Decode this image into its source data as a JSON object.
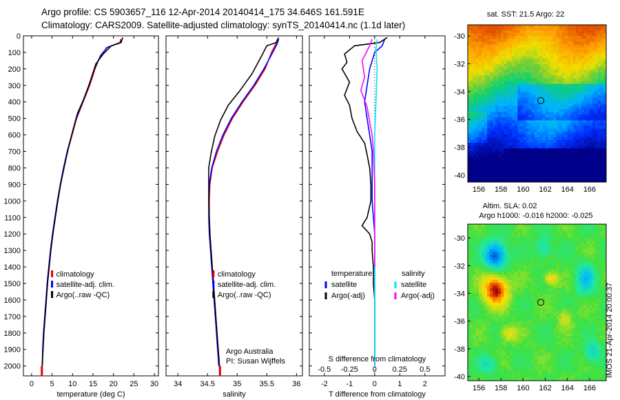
{
  "header": {
    "line1": "Argo profile: CS 5903657_116 12-Apr-2014 20140414_175 34.646S 161.591E",
    "line2": "Climatology: CARS2009. Satellite-adjusted climatology: synTS_20140414.nc (1.1d later)"
  },
  "side_label": "IMOS 21-Apr-2014 20:00:37",
  "colors": {
    "climatology": "#e00000",
    "satellite": "#0000ff",
    "argo": "#000000",
    "sat_s": "#00e5ff",
    "argo_s": "#ff00ff"
  },
  "chart_data": [
    {
      "id": "temperature",
      "type": "line",
      "xlabel": "temperature (deg C)",
      "xlim": [
        -2,
        31
      ],
      "xticks": [
        0,
        5,
        10,
        15,
        20,
        25,
        30
      ],
      "ylim": [
        2060,
        0
      ],
      "yticks": [
        0,
        100,
        200,
        300,
        400,
        500,
        600,
        700,
        800,
        900,
        1000,
        1100,
        1200,
        1300,
        1400,
        1500,
        1600,
        1700,
        1800,
        1900,
        2000
      ],
      "legend": [
        "climatology",
        "satellite-adj. clim.",
        "Argo(..raw -QC)"
      ],
      "series": [
        {
          "name": "climatology",
          "color": "#e00000",
          "points": [
            [
              21.8,
              20
            ],
            [
              21.6,
              40
            ],
            [
              18.5,
              70
            ],
            [
              16.8,
              120
            ],
            [
              15.5,
              200
            ],
            [
              14.2,
              300
            ],
            [
              12.6,
              400
            ],
            [
              11.0,
              500
            ],
            [
              9.9,
              600
            ],
            [
              8.8,
              700
            ],
            [
              7.9,
              800
            ],
            [
              7.1,
              900
            ],
            [
              6.4,
              1000
            ],
            [
              5.8,
              1100
            ],
            [
              5.2,
              1200
            ],
            [
              4.7,
              1300
            ],
            [
              4.3,
              1400
            ],
            [
              3.9,
              1500
            ],
            [
              3.6,
              1600
            ],
            [
              3.3,
              1700
            ],
            [
              3.0,
              1800
            ],
            [
              2.8,
              1900
            ],
            [
              2.6,
              2000
            ],
            [
              2.5,
              2050
            ]
          ]
        },
        {
          "name": "satellite-adj. clim.",
          "color": "#0000ff",
          "points": [
            [
              22.0,
              20
            ],
            [
              21.9,
              40
            ],
            [
              18.4,
              70
            ],
            [
              16.9,
              120
            ],
            [
              15.3,
              200
            ],
            [
              14.0,
              300
            ],
            [
              12.5,
              400
            ],
            [
              10.9,
              500
            ],
            [
              9.8,
              600
            ],
            [
              8.7,
              700
            ],
            [
              7.8,
              800
            ],
            [
              7.0,
              900
            ],
            [
              6.3,
              1000
            ],
            [
              5.7,
              1100
            ],
            [
              5.1,
              1200
            ],
            [
              4.6,
              1300
            ],
            [
              4.2,
              1400
            ],
            [
              3.8,
              1500
            ],
            [
              3.5,
              1600
            ],
            [
              3.2,
              1700
            ],
            [
              2.9,
              1800
            ],
            [
              2.7,
              1900
            ],
            [
              2.6,
              2000
            ]
          ]
        },
        {
          "name": "Argo(..raw -QC)",
          "color": "#000000",
          "points": [
            [
              22.3,
              10
            ],
            [
              21.8,
              40
            ],
            [
              19.5,
              60
            ],
            [
              17.5,
              110
            ],
            [
              15.7,
              170
            ],
            [
              14.3,
              280
            ],
            [
              12.8,
              380
            ],
            [
              11.2,
              470
            ],
            [
              10.0,
              580
            ],
            [
              8.9,
              690
            ],
            [
              8.0,
              790
            ],
            [
              7.1,
              900
            ],
            [
              6.4,
              1000
            ],
            [
              5.8,
              1100
            ],
            [
              5.2,
              1200
            ],
            [
              4.7,
              1300
            ],
            [
              4.3,
              1400
            ],
            [
              3.9,
              1500
            ],
            [
              3.6,
              1600
            ],
            [
              3.3,
              1700
            ],
            [
              3.0,
              1800
            ],
            [
              2.8,
              1900
            ],
            [
              2.6,
              2000
            ]
          ]
        }
      ]
    },
    {
      "id": "salinity",
      "type": "line",
      "xlabel": "salinity",
      "xlim": [
        33.8,
        36.1
      ],
      "xticks": [
        34,
        34.5,
        35,
        35.5,
        36
      ],
      "ylim": [
        2060,
        0
      ],
      "legend": [
        "climatology",
        "satellite-adj. clim.",
        "Argo(..raw -QC)"
      ],
      "note": [
        "Argo Australia",
        "PI: Susan Wijffels"
      ],
      "series": [
        {
          "name": "climatology",
          "color": "#e00000",
          "points": [
            [
              35.68,
              20
            ],
            [
              35.65,
              50
            ],
            [
              35.58,
              100
            ],
            [
              35.47,
              200
            ],
            [
              35.3,
              300
            ],
            [
              35.1,
              400
            ],
            [
              34.92,
              500
            ],
            [
              34.78,
              600
            ],
            [
              34.67,
              700
            ],
            [
              34.58,
              800
            ],
            [
              34.54,
              900
            ],
            [
              34.53,
              1000
            ],
            [
              34.53,
              1100
            ],
            [
              34.54,
              1200
            ],
            [
              34.56,
              1300
            ],
            [
              34.58,
              1400
            ],
            [
              34.6,
              1500
            ],
            [
              34.62,
              1600
            ],
            [
              34.64,
              1700
            ],
            [
              34.66,
              1800
            ],
            [
              34.68,
              1900
            ],
            [
              34.7,
              2000
            ],
            [
              34.71,
              2050
            ]
          ]
        },
        {
          "name": "satellite-adj. clim.",
          "color": "#0000ff",
          "points": [
            [
              35.7,
              20
            ],
            [
              35.67,
              50
            ],
            [
              35.6,
              100
            ],
            [
              35.45,
              200
            ],
            [
              35.28,
              300
            ],
            [
              35.08,
              400
            ],
            [
              34.9,
              500
            ],
            [
              34.76,
              600
            ],
            [
              34.65,
              700
            ],
            [
              34.57,
              800
            ],
            [
              34.53,
              900
            ],
            [
              34.52,
              1000
            ],
            [
              34.52,
              1100
            ],
            [
              34.53,
              1200
            ],
            [
              34.55,
              1300
            ],
            [
              34.57,
              1400
            ],
            [
              34.59,
              1500
            ],
            [
              34.61,
              1600
            ],
            [
              34.63,
              1700
            ],
            [
              34.65,
              1800
            ],
            [
              34.67,
              1900
            ],
            [
              34.69,
              2000
            ]
          ]
        },
        {
          "name": "Argo(..raw -QC)",
          "color": "#000000",
          "points": [
            [
              35.7,
              10
            ],
            [
              35.66,
              40
            ],
            [
              35.5,
              60
            ],
            [
              35.4,
              130
            ],
            [
              35.25,
              230
            ],
            [
              35.05,
              330
            ],
            [
              34.85,
              420
            ],
            [
              34.72,
              510
            ],
            [
              34.62,
              610
            ],
            [
              34.56,
              710
            ],
            [
              34.52,
              800
            ],
            [
              34.52,
              900
            ],
            [
              34.52,
              1000
            ],
            [
              34.53,
              1100
            ],
            [
              34.54,
              1200
            ],
            [
              34.56,
              1300
            ],
            [
              34.58,
              1400
            ],
            [
              34.6,
              1500
            ],
            [
              34.62,
              1600
            ],
            [
              34.64,
              1700
            ],
            [
              34.66,
              1800
            ],
            [
              34.68,
              1900
            ],
            [
              34.7,
              2000
            ]
          ]
        }
      ]
    },
    {
      "id": "difference",
      "type": "line",
      "xlabel": "T difference from climatology",
      "xlabel_top": "S difference from climatology",
      "xlim": [
        -2.6,
        2.8
      ],
      "xticks": [
        -2,
        -1,
        0,
        1,
        2
      ],
      "xticks_s": [
        {
          "v": -2,
          "label": "-0.5"
        },
        {
          "v": -1,
          "label": "-0.25"
        },
        {
          "v": 0,
          "label": "0"
        },
        {
          "v": 1,
          "label": "0.25"
        },
        {
          "v": 2,
          "label": "0.5"
        }
      ],
      "ylim": [
        2060,
        0
      ],
      "legend_t_title": "temperature",
      "legend_s_title": "salinity",
      "legend_t": [
        "satellite",
        "Argo(-adj)"
      ],
      "legend_s": [
        "satellite",
        "Argo(-adj)"
      ],
      "series": [
        {
          "name": "T satellite",
          "color": "#0000ff",
          "points": [
            [
              0.4,
              20
            ],
            [
              0.3,
              60
            ],
            [
              0.0,
              100
            ],
            [
              -0.2,
              200
            ],
            [
              -0.3,
              300
            ],
            [
              -0.4,
              400
            ],
            [
              -0.3,
              500
            ],
            [
              -0.2,
              600
            ],
            [
              -0.1,
              700
            ],
            [
              -0.1,
              800
            ],
            [
              -0.1,
              900
            ],
            [
              -0.1,
              1000
            ],
            [
              -0.05,
              1100
            ],
            [
              0.0,
              1200
            ],
            [
              0.0,
              1300
            ],
            [
              0.0,
              1500
            ],
            [
              0.0,
              1700
            ],
            [
              0.0,
              1900
            ],
            [
              0.0,
              2000
            ]
          ]
        },
        {
          "name": "T Argo(-adj)",
          "color": "#000000",
          "points": [
            [
              0.5,
              10
            ],
            [
              0.2,
              40
            ],
            [
              -0.8,
              60
            ],
            [
              -1.2,
              110
            ],
            [
              -1.1,
              160
            ],
            [
              -1.3,
              200
            ],
            [
              -1.0,
              280
            ],
            [
              -1.2,
              360
            ],
            [
              -1.0,
              420
            ],
            [
              -0.9,
              500
            ],
            [
              -0.7,
              580
            ],
            [
              -0.4,
              650
            ],
            [
              -0.3,
              720
            ],
            [
              -0.2,
              800
            ],
            [
              -0.15,
              900
            ],
            [
              -0.15,
              1000
            ],
            [
              -0.3,
              1100
            ],
            [
              -0.5,
              1150
            ],
            [
              -0.2,
              1200
            ],
            [
              -0.1,
              1250
            ],
            [
              -0.1,
              1300
            ],
            [
              -0.05,
              1400
            ],
            [
              -0.05,
              1500
            ],
            [
              0.0,
              1600
            ],
            [
              0.0,
              1800
            ],
            [
              0.0,
              2000
            ]
          ]
        },
        {
          "name": "S satellite",
          "color": "#00e5ff",
          "points": [
            [
              0.1,
              20
            ],
            [
              0.05,
              80
            ],
            [
              0.1,
              200
            ],
            [
              0.05,
              400
            ],
            [
              0.0,
              600
            ],
            [
              0.0,
              800
            ],
            [
              0.0,
              1000
            ],
            [
              0.0,
              1300
            ],
            [
              0.0,
              1600
            ],
            [
              0.0,
              2000
            ]
          ]
        },
        {
          "name": "S Argo(-adj)",
          "color": "#ff00ff",
          "points": [
            [
              -0.1,
              20
            ],
            [
              -0.2,
              60
            ],
            [
              -0.5,
              150
            ],
            [
              -0.4,
              250
            ],
            [
              -0.55,
              330
            ],
            [
              -0.3,
              430
            ],
            [
              -0.2,
              520
            ],
            [
              -0.1,
              600
            ],
            [
              -0.05,
              700
            ],
            [
              0.0,
              900
            ],
            [
              0.0,
              1100
            ],
            [
              0.0,
              1400
            ]
          ]
        }
      ]
    },
    {
      "id": "sst-map",
      "type": "heatmap",
      "title": "sat. SST: 21.5  Argo: 22",
      "xlim": [
        155,
        167.5
      ],
      "ylim": [
        -40.5,
        -29.2
      ],
      "xticks": [
        156,
        158,
        160,
        162,
        164,
        166
      ],
      "yticks": [
        -30,
        -32,
        -34,
        -36,
        -38,
        -40
      ],
      "marker": {
        "lon": 161.591,
        "lat": -34.646
      }
    },
    {
      "id": "sla-map",
      "type": "heatmap",
      "title": "Altim. SLA: 0.02",
      "subtitle": "Argo h1000: -0.016 h2000: -0.025",
      "xlim": [
        155,
        167.5
      ],
      "ylim": [
        -40.3,
        -29.0
      ],
      "xticks": [
        156,
        158,
        160,
        162,
        164,
        166
      ],
      "yticks": [
        -30,
        -32,
        -34,
        -36,
        -38,
        -40
      ],
      "marker": {
        "lon": 161.591,
        "lat": -34.646
      }
    }
  ]
}
